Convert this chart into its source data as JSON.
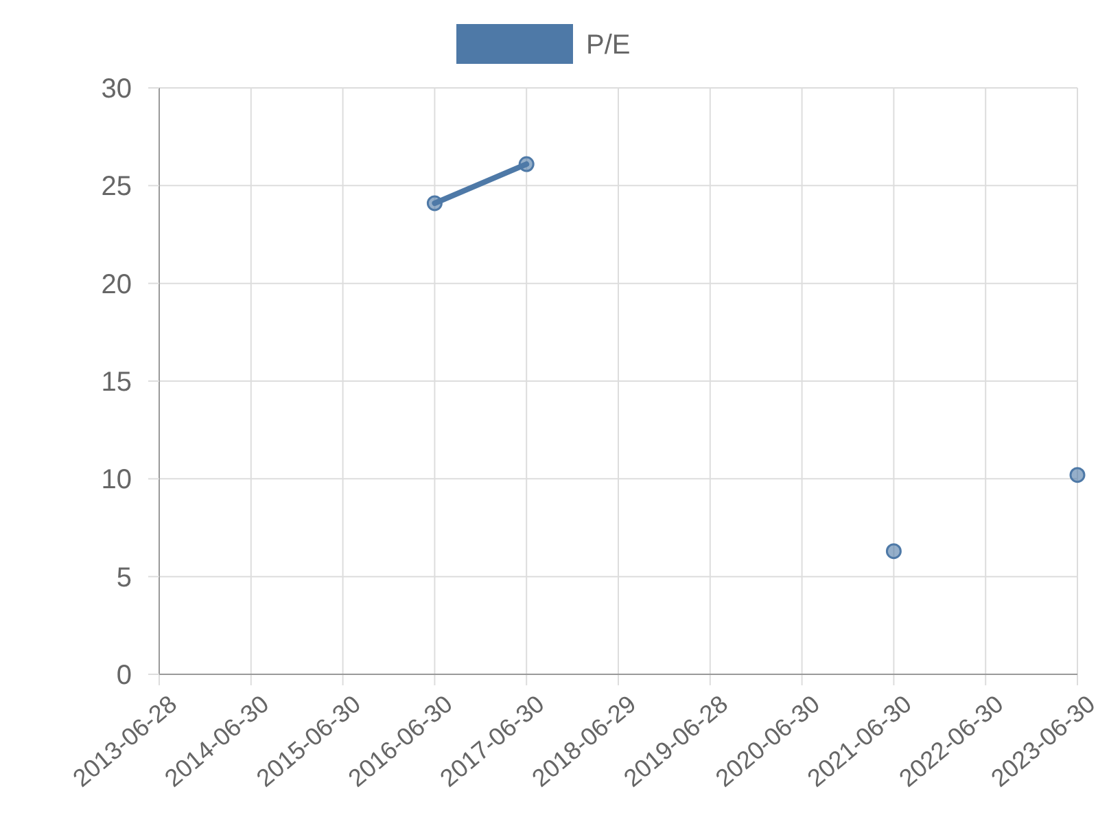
{
  "chart_data": {
    "type": "line",
    "categories": [
      "2013-06-28",
      "2014-06-30",
      "2015-06-30",
      "2016-06-30",
      "2017-06-30",
      "2018-06-29",
      "2019-06-28",
      "2020-06-30",
      "2021-06-30",
      "2022-06-30",
      "2023-06-30"
    ],
    "series": [
      {
        "name": "P/E",
        "color": "#4e79a7",
        "values": [
          null,
          null,
          null,
          24.1,
          26.1,
          null,
          null,
          null,
          6.3,
          null,
          10.2
        ]
      }
    ],
    "ylim": [
      0,
      30
    ],
    "yticks": [
      0,
      5,
      10,
      15,
      20,
      25,
      30
    ],
    "grid": true,
    "legend": "top",
    "marker": "circle",
    "line_style": "solid"
  }
}
